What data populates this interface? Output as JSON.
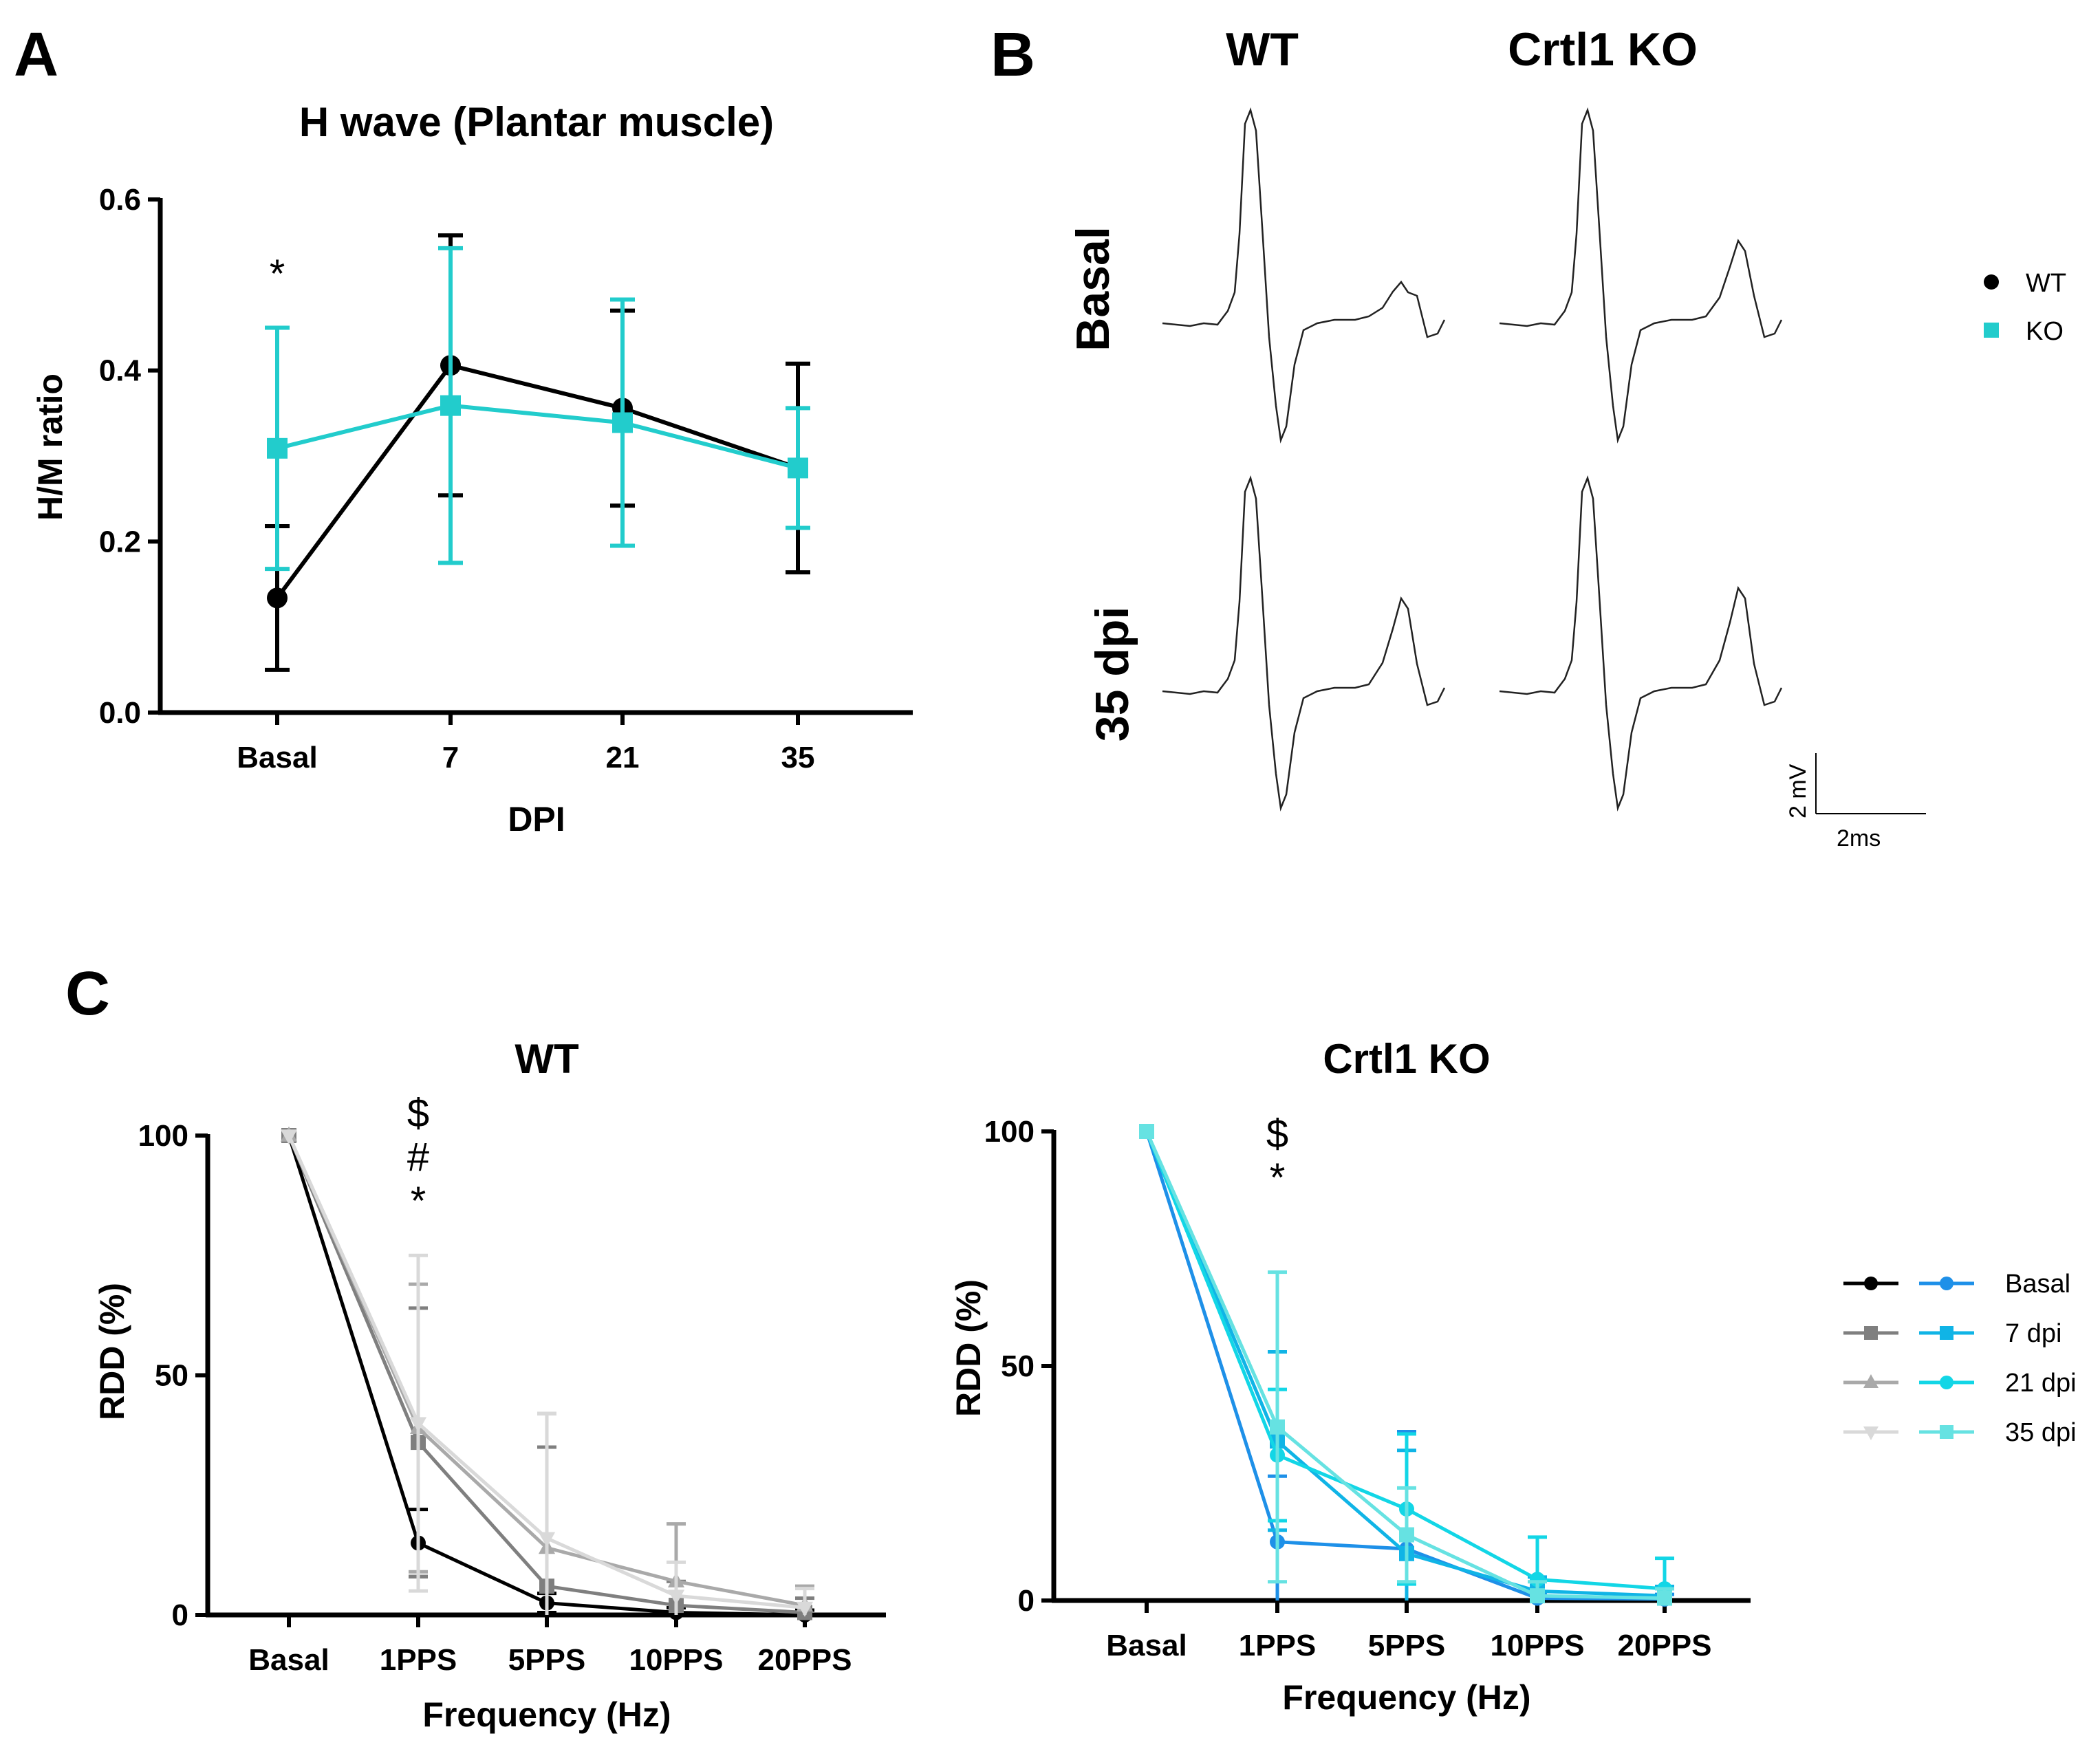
{
  "panels": {
    "a_letter": "A",
    "b_letter": "B",
    "c_letter": "C"
  },
  "traces": {
    "col_wt": "WT",
    "col_ko": "Crtl1 KO",
    "row_basal": "Basal",
    "row_35": "35 dpi",
    "scale_v": "2 mV",
    "scale_h": "2ms"
  },
  "colors": {
    "wt": "#000000",
    "ko": "#22cccc",
    "wt_basal": "#000000",
    "wt_7": "#7f7f7f",
    "wt_21": "#a9a9a9",
    "wt_35": "#d9d9d9",
    "ko_basal": "#1e90e8",
    "ko_7": "#10b4e6",
    "ko_21": "#12d6e6",
    "ko_35": "#66e2e2"
  },
  "chart_data": [
    {
      "id": "A",
      "type": "line",
      "title": "H wave (Plantar muscle)",
      "xlabel": "DPI",
      "ylabel": "H/M ratio",
      "categories": [
        "Basal",
        "7",
        "21",
        "35"
      ],
      "ylim": [
        0,
        0.6
      ],
      "yticks": [
        "0.0",
        "0.2",
        "0.4",
        "0.6"
      ],
      "series": [
        {
          "name": "WT",
          "marker": "circle",
          "values": [
            0.134,
            0.406,
            0.356,
            0.286
          ],
          "err": [
            0.084,
            0.152,
            0.114,
            0.122
          ]
        },
        {
          "name": "KO",
          "marker": "square",
          "values": [
            0.309,
            0.359,
            0.339,
            0.286
          ],
          "err": [
            0.141,
            0.184,
            0.144,
            0.07
          ]
        }
      ],
      "annotations": [
        {
          "category": "Basal",
          "text": "*"
        }
      ],
      "legend": "right"
    },
    {
      "id": "C-WT",
      "type": "line",
      "title": "WT",
      "xlabel": "Frequency (Hz)",
      "ylabel": "RDD (%)",
      "categories": [
        "Basal",
        "1PPS",
        "5PPS",
        "10PPS",
        "20PPS"
      ],
      "ylim": [
        0,
        100
      ],
      "yticks": [
        "0",
        "50",
        "100"
      ],
      "series": [
        {
          "name": "Basal",
          "marker": "circle",
          "values": [
            100,
            15,
            2.5,
            0.5,
            0
          ],
          "err": [
            0,
            7,
            2,
            1,
            1
          ]
        },
        {
          "name": "7 dpi",
          "marker": "square",
          "values": [
            100,
            36,
            6,
            2,
            0.5
          ],
          "err": [
            0,
            28,
            29,
            5,
            3
          ]
        },
        {
          "name": "21 dpi",
          "marker": "triangle",
          "values": [
            100,
            39,
            14,
            7,
            2
          ],
          "err": [
            0,
            30,
            28,
            12,
            4
          ]
        },
        {
          "name": "35 dpi",
          "marker": "triangle-down",
          "values": [
            100,
            40,
            16,
            4,
            1.5
          ],
          "err": [
            0,
            35,
            26,
            7,
            4
          ]
        }
      ],
      "annotations": [
        {
          "category": "1PPS",
          "text": [
            "$",
            "#",
            "*"
          ]
        }
      ]
    },
    {
      "id": "C-KO",
      "type": "line",
      "title": "Crtl1 KO",
      "xlabel": "Frequency (Hz)",
      "ylabel": "RDD (%)",
      "categories": [
        "Basal",
        "1PPS",
        "5PPS",
        "10PPS",
        "20PPS"
      ],
      "ylim": [
        0,
        100
      ],
      "yticks": [
        "0",
        "50",
        "100"
      ],
      "series": [
        {
          "name": "Basal",
          "marker": "circle",
          "values": [
            100,
            12.5,
            11,
            0.5,
            0.3
          ],
          "err": [
            0,
            14,
            25,
            1,
            1
          ]
        },
        {
          "name": "7 dpi",
          "marker": "square",
          "values": [
            100,
            34,
            10,
            2,
            1
          ],
          "err": [
            0,
            19,
            22,
            3,
            2
          ]
        },
        {
          "name": "21 dpi",
          "marker": "circle",
          "values": [
            100,
            31,
            19.5,
            4.5,
            2.5
          ],
          "err": [
            0,
            14,
            16,
            9,
            6.5
          ]
        },
        {
          "name": "35 dpi",
          "marker": "square",
          "values": [
            100,
            37,
            14,
            1,
            0.5
          ],
          "err": [
            0,
            33,
            10,
            3,
            2
          ]
        }
      ],
      "annotations": [
        {
          "category": "1PPS",
          "text": [
            "$",
            "*"
          ]
        }
      ],
      "legend": "right"
    }
  ]
}
